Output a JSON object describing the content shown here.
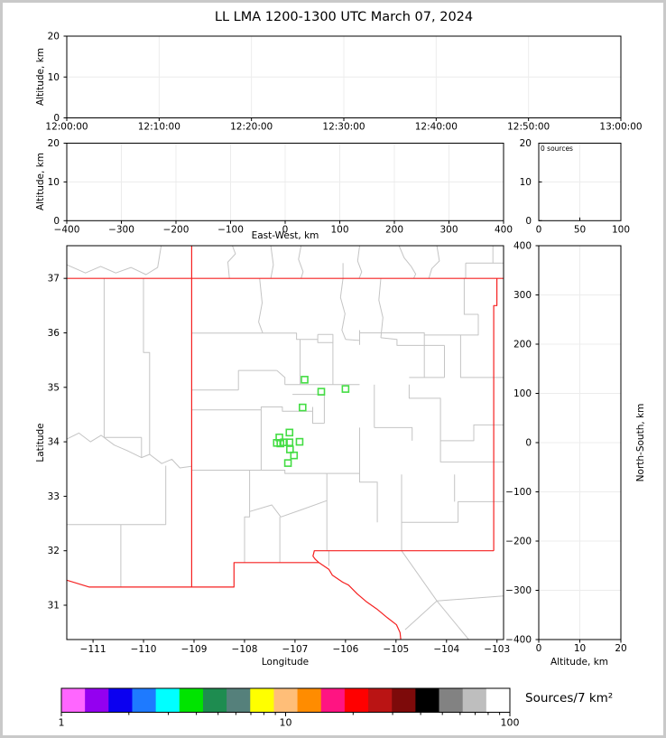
{
  "title": "LL LMA 1200-1300 UTC March 07, 2024",
  "colors": {
    "background": "#ffffff",
    "frame": "#000000",
    "grid": "#ececec",
    "state_border_red": "#f52020",
    "county_gray": "#c4c4c4",
    "station_marker_green": "#44dd44",
    "figure_border_gray": "#c9c9c9"
  },
  "chart_data": [
    {
      "id": "time_height_panel",
      "type": "scatter",
      "xlabel": "",
      "ylabel": "Altitude, km",
      "xlim": [
        "12:00:00",
        "13:00:00"
      ],
      "ylim": [
        0,
        20
      ],
      "x_ticks": [
        "12:00:00",
        "12:10:00",
        "12:20:00",
        "12:30:00",
        "12:40:00",
        "12:50:00",
        "13:00:00"
      ],
      "y_ticks": [
        20,
        10,
        0
      ],
      "grid": "light",
      "points": []
    },
    {
      "id": "ew_height_panel",
      "type": "scatter",
      "xlabel": "East-West, km",
      "ylabel": "Altitude, km",
      "xlim": [
        -400,
        400
      ],
      "ylim": [
        0,
        20
      ],
      "x_ticks": [
        -400,
        -300,
        -200,
        -100,
        0,
        100,
        200,
        300,
        400
      ],
      "y_ticks": [
        20,
        10,
        0
      ],
      "grid": "light",
      "points": []
    },
    {
      "id": "station_count_panel",
      "type": "histogram",
      "annotation": "0 sources",
      "xlim": [
        0,
        100
      ],
      "ylim": [
        0,
        20
      ],
      "x_ticks": [
        0,
        50,
        100
      ],
      "y_ticks": [
        20,
        10,
        0
      ],
      "grid": "light",
      "values": []
    },
    {
      "id": "plan_view_map",
      "type": "scatter",
      "xlabel": "Longitude",
      "ylabel": "Latitude",
      "xlim": [
        -111.52,
        -102.87
      ],
      "ylim": [
        30.37,
        37.6
      ],
      "x_ticks": [
        -111,
        -110,
        -109,
        -108,
        -107,
        -106,
        -105,
        -104,
        -103
      ],
      "y_ticks": [
        37,
        36,
        35,
        34,
        33,
        32,
        31
      ],
      "marker": "green-open-square",
      "stations": [
        [
          -106.81,
          35.14
        ],
        [
          -106.48,
          34.92
        ],
        [
          -106.0,
          34.97
        ],
        [
          -106.85,
          34.63
        ],
        [
          -107.11,
          34.17
        ],
        [
          -107.31,
          34.08
        ],
        [
          -107.36,
          33.98
        ],
        [
          -107.29,
          33.97
        ],
        [
          -107.22,
          33.99
        ],
        [
          -107.11,
          33.99
        ],
        [
          -106.91,
          34.0
        ],
        [
          -107.1,
          33.86
        ],
        [
          -107.02,
          33.75
        ],
        [
          -107.14,
          33.61
        ]
      ]
    },
    {
      "id": "ns_height_panel",
      "type": "scatter",
      "xlabel": "Altitude, km",
      "ylabel": "North-South, km",
      "xlim": [
        0,
        20
      ],
      "ylim": [
        -400,
        400
      ],
      "x_ticks": [
        0,
        10,
        20
      ],
      "y_ticks": [
        400,
        300,
        200,
        100,
        0,
        -100,
        -200,
        -300,
        -400
      ],
      "grid": "light",
      "points": []
    },
    {
      "id": "colorbar",
      "type": "colorbar",
      "label": "Sources/7 km²",
      "scale": "log",
      "ticks": [
        1,
        10,
        100
      ],
      "minor_ticks": [
        2,
        3,
        4,
        5,
        6,
        7,
        8,
        9,
        20,
        30,
        40,
        50,
        60,
        70,
        80,
        90
      ],
      "colors": [
        "#ff66ff",
        "#9400f0",
        "#0b00f0",
        "#1e7aff",
        "#00ffff",
        "#00e400",
        "#1e8c50",
        "#55807b",
        "#ffff00",
        "#ffbe78",
        "#ff8c00",
        "#ff1482",
        "#ff0000",
        "#ba1414",
        "#7d0a0a",
        "#000000",
        "#828282",
        "#bebebe",
        "#ffffff"
      ]
    }
  ]
}
